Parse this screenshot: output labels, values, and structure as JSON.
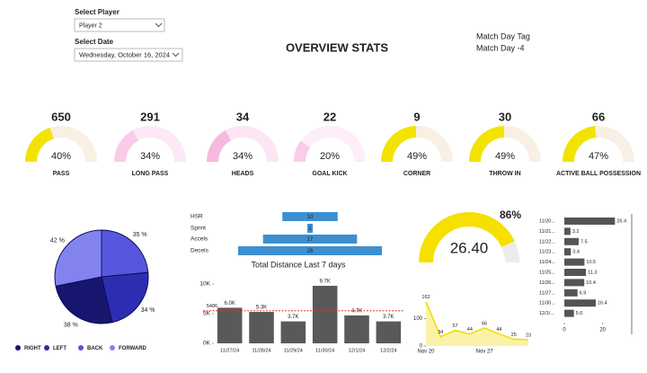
{
  "header": {
    "player_label": "Select Player",
    "player": "Player 2",
    "date_label": "Select Date",
    "date": "Wednesday, October 16, 2024",
    "title": "OVERVIEW STATS",
    "tag_label": "Match Day Tag",
    "tag": "Match Day -4"
  },
  "chart_data": [
    {
      "type": "gauge",
      "categories": [
        "PASS",
        "LONG PASS",
        "HEADS",
        "GOAL KICK",
        "CORNER",
        "THROW IN",
        "ACTIVE BALL POSSESSION"
      ],
      "totals": [
        650,
        291,
        34,
        22,
        9,
        30,
        66
      ],
      "values": [
        40,
        34,
        34,
        20,
        49,
        49,
        47
      ],
      "value_labels": [
        "40%",
        "34%",
        "34%",
        "20%",
        "49%",
        "49%",
        "47%"
      ],
      "colors": [
        "#f2e400",
        "#f8cbe9",
        "#f6b9de",
        "#f9cde9",
        "#f2e400",
        "#f2e400",
        "#f2e400"
      ],
      "track_colors": [
        "#f8f0e4",
        "#fce9f5",
        "#fce6f3",
        "#fdeef7",
        "#f8f0e4",
        "#f8f0e4",
        "#f8f0e4"
      ],
      "ylim": [
        0,
        100
      ]
    },
    {
      "type": "pie",
      "categories": [
        "RIGHT",
        "LEFT",
        "BACK",
        "FORWARD"
      ],
      "values": [
        38,
        34,
        35,
        42
      ],
      "value_labels": [
        "38 %",
        "34 %",
        "35 %",
        "42 %"
      ],
      "colors": [
        "#16166f",
        "#2d2db2",
        "#5757dd",
        "#8383ef"
      ],
      "legend": "bottom"
    },
    {
      "type": "funnel",
      "categories": [
        "HSR",
        "Sprint",
        "Accels",
        "Decels"
      ],
      "values": [
        10,
        1,
        17,
        26
      ],
      "color": "#3d8fd1"
    },
    {
      "type": "bar",
      "title": "Total Distance Last 7 days",
      "categories": [
        "11/27/24",
        "11/28/24",
        "11/29/24",
        "11/30/24",
        "12/1/24",
        "12/2/24"
      ],
      "values": [
        6000,
        5300,
        3700,
        9700,
        4700,
        3700
      ],
      "value_labels": [
        "6.0K",
        "5.3K",
        "3.7K",
        "9.7K",
        "4.7K",
        "3.7K"
      ],
      "color": "#595959",
      "ylim": [
        0,
        10000
      ],
      "yticks": [
        {
          "value": 0,
          "label": "0K"
        },
        {
          "value": 5000,
          "label": "5K"
        },
        {
          "value": 10000,
          "label": "10K"
        }
      ],
      "reference_line": {
        "value": 5486,
        "color": "#e03030"
      }
    },
    {
      "type": "area",
      "categories": [
        "Nov 20",
        null,
        null,
        null,
        "Nov 27",
        null,
        null,
        null
      ],
      "values": [
        162,
        34,
        57,
        44,
        66,
        44,
        25,
        23
      ],
      "color": "#f0dc00",
      "ylim": [
        0,
        180
      ],
      "yticks": [
        0,
        100
      ]
    },
    {
      "type": "half-gauge",
      "values": [
        86
      ],
      "value_labels": [
        "86%"
      ],
      "center_value": 26.4,
      "center_label": "26.40",
      "color": "#f5e000",
      "track_color": "#ececec",
      "ylim": [
        0,
        100
      ]
    },
    {
      "type": "hbar",
      "categories": [
        "11/20...",
        "11/21...",
        "11/22...",
        "11/23...",
        "11/24...",
        "11/25...",
        "11/26...",
        "11/27...",
        "11/30...",
        "12/1/..."
      ],
      "values": [
        26.4,
        3.2,
        7.5,
        3.4,
        10.5,
        11.3,
        10.4,
        6.9,
        16.4,
        5.0
      ],
      "value_labels": [
        "26.4",
        "3.2",
        "7.5",
        "3.4",
        "10.5",
        "11.3",
        "10.4",
        "6.9",
        "16.4",
        "5.0"
      ],
      "color": "#555555",
      "xlim": [
        0,
        30
      ],
      "xticks": [
        0,
        20
      ]
    }
  ]
}
